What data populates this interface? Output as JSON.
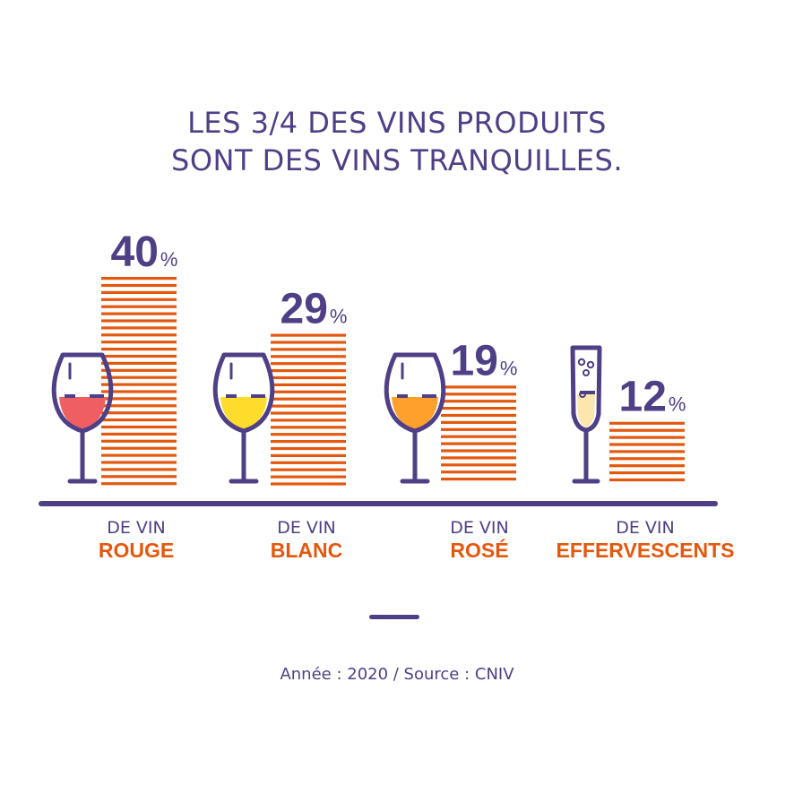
{
  "title_lines": [
    "LES 3/4 DES VINS PRODUITS",
    "SONT DES VINS TRANQUILLES."
  ],
  "colors": {
    "primary": "#4f3f86",
    "bar": "#e4580e",
    "rouge": "#ef5f62",
    "blanc": "#fddc2c",
    "rose": "#ff9f2c",
    "effervescent": "#fde6ad"
  },
  "chart_data": {
    "type": "bar",
    "categories": [
      "ROUGE",
      "BLANC",
      "ROSÉ",
      "EFFERVESCENTS"
    ],
    "category_prefix": "DE VIN",
    "values": [
      40,
      29,
      19,
      12
    ],
    "value_suffix": "%",
    "glass_icons": [
      "wine-glass-icon",
      "wine-glass-icon",
      "wine-glass-icon",
      "champagne-flute-icon"
    ],
    "ylim": [
      0,
      40
    ],
    "title": "LES 3/4 DES VINS PRODUITS SONT DES VINS TRANQUILLES."
  },
  "source": "Année : 2020 / Source : CNIV"
}
